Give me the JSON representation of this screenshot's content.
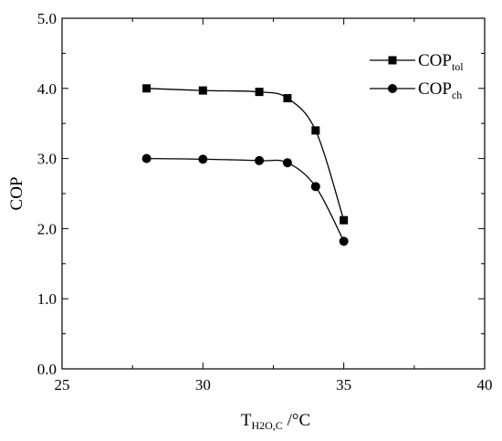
{
  "chart_data": {
    "type": "line",
    "title": "",
    "xlabel": {
      "main": "T",
      "sub": "H2O,C",
      "suffix": " /°C"
    },
    "ylabel": "COP",
    "xlim": [
      25,
      40
    ],
    "ylim": [
      0.0,
      5.0
    ],
    "x_ticks": [
      25,
      30,
      35,
      40
    ],
    "x_tick_labels": [
      "25",
      "30",
      "35",
      "40"
    ],
    "y_ticks": [
      0,
      1,
      2,
      3,
      4,
      5
    ],
    "y_tick_labels": [
      "0.0",
      "1.0",
      "2.0",
      "3.0",
      "4.0",
      "5.0"
    ],
    "grid": false,
    "legend_position": "top-right",
    "series": [
      {
        "name": "COP_tol",
        "label_main": "COP",
        "label_sub": "tol",
        "marker": "square",
        "x": [
          28,
          30,
          32,
          33,
          34,
          35
        ],
        "values": [
          4.0,
          3.97,
          3.95,
          3.86,
          3.4,
          2.12
        ]
      },
      {
        "name": "COP_ch",
        "label_main": "COP",
        "label_sub": "ch",
        "marker": "circle",
        "x": [
          28,
          30,
          32,
          33,
          34,
          35
        ],
        "values": [
          3.0,
          2.99,
          2.97,
          2.94,
          2.6,
          1.82
        ]
      }
    ],
    "colors": {
      "line": "#000000",
      "marker": "#000000"
    }
  }
}
